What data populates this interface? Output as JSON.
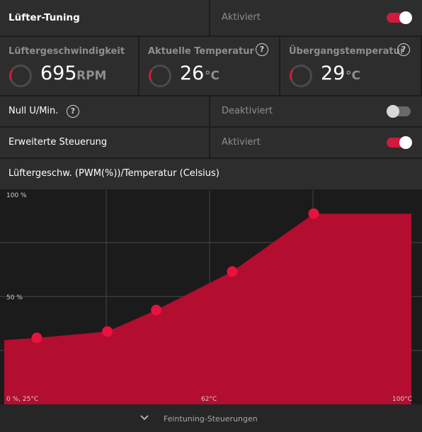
{
  "header": {
    "title": "Lüfter-Tuning",
    "status": "Aktiviert",
    "toggle_on": true
  },
  "stats": [
    {
      "title": "Lüftergeschwindigkeit",
      "value": "695",
      "unit": "RPM",
      "has_help": false
    },
    {
      "title": "Aktuelle Temperatur",
      "value": "26",
      "unit": "°C",
      "has_help": true
    },
    {
      "title": "Übergangstemperatur",
      "value": "29",
      "unit": "°C",
      "has_help": true
    }
  ],
  "zero_rpm": {
    "label": "Null U/Min.",
    "status": "Deaktiviert",
    "toggle_on": false
  },
  "advanced": {
    "label": "Erweiterte Steuerung",
    "status": "Aktiviert",
    "toggle_on": true
  },
  "curve_header": {
    "label": "Lüftergeschw. (PWM(%))/Temperatur (Celsius)"
  },
  "help_glyph": "?",
  "accent_color": "#d01a3e",
  "chart_data": {
    "type": "area",
    "x_range": [
      25,
      100
    ],
    "y_range": [
      0,
      100
    ],
    "points": [
      {
        "x": 31,
        "y": 31
      },
      {
        "x": 44,
        "y": 34
      },
      {
        "x": 53,
        "y": 44
      },
      {
        "x": 67,
        "y": 62
      },
      {
        "x": 82,
        "y": 89
      }
    ],
    "fill_end": {
      "x": 100,
      "y": 89
    },
    "fill_start": {
      "x": 25,
      "y": 30
    },
    "labels": {
      "y_top": "100 %",
      "y_mid": "50 %",
      "origin": "0 %, 25°C",
      "x_mid": "62°C",
      "x_end": "100°C"
    }
  },
  "footer": {
    "label": "Feintuning-Steuerungen"
  }
}
